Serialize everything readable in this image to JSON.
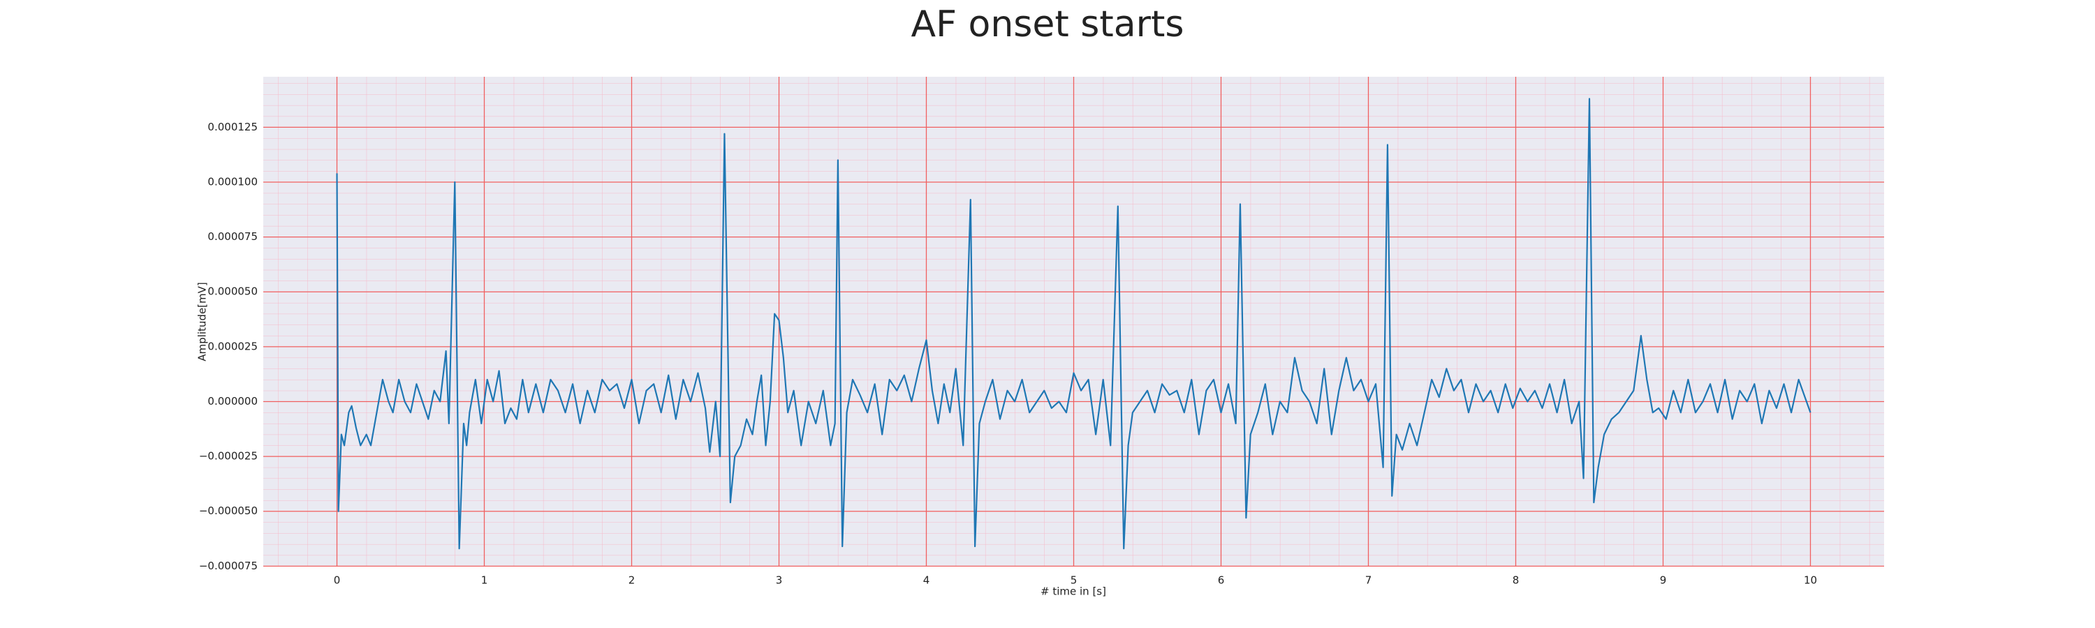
{
  "chart_data": {
    "type": "line",
    "title": "AF onset starts",
    "xlabel": "# time in [s]",
    "ylabel": "Amplitude[mV]",
    "color": "#1f77b4",
    "grid": true,
    "minor_grid": true,
    "xlim": [
      -0.5,
      10.5
    ],
    "ylim": [
      -7.52e-05,
      0.000148
    ],
    "xticks": [
      0,
      1,
      2,
      3,
      4,
      5,
      6,
      7,
      8,
      9,
      10
    ],
    "yticks": [
      {
        "value": -7.5e-05,
        "label": "−0.000075"
      },
      {
        "value": -5e-05,
        "label": "−0.000050"
      },
      {
        "value": -2.5e-05,
        "label": "−0.000025"
      },
      {
        "value": 0,
        "label": "0.000000"
      },
      {
        "value": 2.5e-05,
        "label": "0.000025"
      },
      {
        "value": 5e-05,
        "label": "0.000050"
      },
      {
        "value": 7.5e-05,
        "label": "0.000075"
      },
      {
        "value": 0.0001,
        "label": "0.000100"
      },
      {
        "value": 0.000125,
        "label": "0.000125"
      }
    ],
    "x": [
      0,
      0.01,
      0.03,
      0.05,
      0.08,
      0.1,
      0.13,
      0.16,
      0.2,
      0.23,
      0.27,
      0.31,
      0.35,
      0.38,
      0.42,
      0.46,
      0.5,
      0.54,
      0.58,
      0.62,
      0.66,
      0.7,
      0.74,
      0.76,
      0.8,
      0.83,
      0.86,
      0.88,
      0.9,
      0.94,
      0.98,
      1.02,
      1.06,
      1.1,
      1.14,
      1.18,
      1.22,
      1.26,
      1.3,
      1.35,
      1.4,
      1.45,
      1.5,
      1.55,
      1.6,
      1.65,
      1.7,
      1.75,
      1.8,
      1.85,
      1.9,
      1.95,
      2.0,
      2.05,
      2.1,
      2.15,
      2.2,
      2.25,
      2.3,
      2.35,
      2.4,
      2.45,
      2.5,
      2.53,
      2.57,
      2.6,
      2.63,
      2.67,
      2.7,
      2.74,
      2.78,
      2.82,
      2.85,
      2.88,
      2.91,
      2.94,
      2.97,
      3.0,
      3.03,
      3.06,
      3.1,
      3.15,
      3.2,
      3.25,
      3.3,
      3.35,
      3.38,
      3.4,
      3.43,
      3.46,
      3.5,
      3.55,
      3.6,
      3.65,
      3.7,
      3.75,
      3.8,
      3.85,
      3.9,
      3.95,
      4.0,
      4.04,
      4.08,
      4.12,
      4.16,
      4.2,
      4.25,
      4.3,
      4.33,
      4.36,
      4.4,
      4.45,
      4.5,
      4.55,
      4.6,
      4.65,
      4.7,
      4.75,
      4.8,
      4.85,
      4.9,
      4.95,
      5.0,
      5.05,
      5.1,
      5.15,
      5.2,
      5.25,
      5.3,
      5.34,
      5.37,
      5.4,
      5.45,
      5.5,
      5.55,
      5.6,
      5.65,
      5.7,
      5.75,
      5.8,
      5.85,
      5.9,
      5.95,
      6.0,
      6.05,
      6.1,
      6.13,
      6.17,
      6.2,
      6.25,
      6.3,
      6.35,
      6.4,
      6.45,
      6.5,
      6.55,
      6.6,
      6.65,
      6.7,
      6.75,
      6.8,
      6.85,
      6.9,
      6.95,
      7.0,
      7.05,
      7.1,
      7.13,
      7.16,
      7.19,
      7.23,
      7.28,
      7.33,
      7.38,
      7.43,
      7.48,
      7.53,
      7.58,
      7.63,
      7.68,
      7.73,
      7.78,
      7.83,
      7.88,
      7.93,
      7.98,
      8.03,
      8.08,
      8.13,
      8.18,
      8.23,
      8.28,
      8.33,
      8.38,
      8.43,
      8.46,
      8.5,
      8.53,
      8.56,
      8.6,
      8.65,
      8.7,
      8.75,
      8.8,
      8.85,
      8.89,
      8.93,
      8.97,
      9.02,
      9.07,
      9.12,
      9.17,
      9.22,
      9.27,
      9.32,
      9.37,
      9.42,
      9.47,
      9.52,
      9.57,
      9.62,
      9.67,
      9.72,
      9.77,
      9.82,
      9.87,
      9.92,
      10.0
    ],
    "values": [
      0.000104,
      -5e-05,
      -1.5e-05,
      -2e-05,
      -5e-06,
      -2e-06,
      -1.2e-05,
      -2e-05,
      -1.5e-05,
      -2e-05,
      -5e-06,
      1e-05,
      0,
      -5e-06,
      1e-05,
      0,
      -5e-06,
      8e-06,
      0,
      -8e-06,
      5e-06,
      0,
      2.3e-05,
      -1e-05,
      0.0001,
      -6.7e-05,
      -1e-05,
      -2e-05,
      -5e-06,
      1e-05,
      -1e-05,
      1e-05,
      0,
      1.4e-05,
      -1e-05,
      -3e-06,
      -8e-06,
      1e-05,
      -5e-06,
      8e-06,
      -5e-06,
      1e-05,
      5e-06,
      -5e-06,
      8e-06,
      -1e-05,
      5e-06,
      -5e-06,
      1e-05,
      5e-06,
      8e-06,
      -3e-06,
      1e-05,
      -1e-05,
      5e-06,
      8e-06,
      -5e-06,
      1.2e-05,
      -8e-06,
      1e-05,
      0,
      1.3e-05,
      -3e-06,
      -2.3e-05,
      0,
      -2.5e-05,
      0.000122,
      -4.6e-05,
      -2.5e-05,
      -2e-05,
      -8e-06,
      -1.5e-05,
      0,
      1.2e-05,
      -2e-05,
      0,
      4e-05,
      3.7e-05,
      2e-05,
      -5e-06,
      5e-06,
      -2e-05,
      0,
      -1e-05,
      5e-06,
      -2e-05,
      -1e-05,
      0.00011,
      -6.6e-05,
      -5e-06,
      1e-05,
      3e-06,
      -5e-06,
      8e-06,
      -1.5e-05,
      1e-05,
      5e-06,
      1.2e-05,
      0,
      1.5e-05,
      2.8e-05,
      5e-06,
      -1e-05,
      8e-06,
      -5e-06,
      1.5e-05,
      -2e-05,
      9.2e-05,
      -6.6e-05,
      -1e-05,
      0,
      1e-05,
      -8e-06,
      5e-06,
      0,
      1e-05,
      -5e-06,
      0,
      5e-06,
      -3e-06,
      0,
      -5e-06,
      1.3e-05,
      5e-06,
      1e-05,
      -1.5e-05,
      1e-05,
      -2e-05,
      8.9e-05,
      -6.7e-05,
      -2e-05,
      -5e-06,
      0,
      5e-06,
      -5e-06,
      8e-06,
      3e-06,
      5e-06,
      -5e-06,
      1e-05,
      -1.5e-05,
      5e-06,
      1e-05,
      -5e-06,
      8e-06,
      -1e-05,
      9e-05,
      -5.3e-05,
      -1.5e-05,
      -5e-06,
      8e-06,
      -1.5e-05,
      0,
      -5e-06,
      2e-05,
      5e-06,
      0,
      -1e-05,
      1.5e-05,
      -1.5e-05,
      5e-06,
      2e-05,
      5e-06,
      1e-05,
      0,
      8e-06,
      -3e-05,
      0.000117,
      -4.3e-05,
      -1.5e-05,
      -2.2e-05,
      -1e-05,
      -2e-05,
      -5e-06,
      1e-05,
      2e-06,
      1.5e-05,
      5e-06,
      1e-05,
      -5e-06,
      8e-06,
      0,
      5e-06,
      -5e-06,
      8e-06,
      -3e-06,
      6e-06,
      0,
      5e-06,
      -3e-06,
      8e-06,
      -5e-06,
      1e-05,
      -1e-05,
      0,
      -3.5e-05,
      0.000138,
      -4.6e-05,
      -3e-05,
      -1.5e-05,
      -8e-06,
      -5e-06,
      0,
      5e-06,
      3e-05,
      1e-05,
      -5e-06,
      -3e-06,
      -8e-06,
      5e-06,
      -5e-06,
      1e-05,
      -5e-06,
      0,
      8e-06,
      -5e-06,
      1e-05,
      -8e-06,
      5e-06,
      0,
      8e-06,
      -1e-05,
      5e-06,
      -3e-06,
      8e-06,
      -5e-06,
      1e-05,
      -5e-06
    ]
  }
}
